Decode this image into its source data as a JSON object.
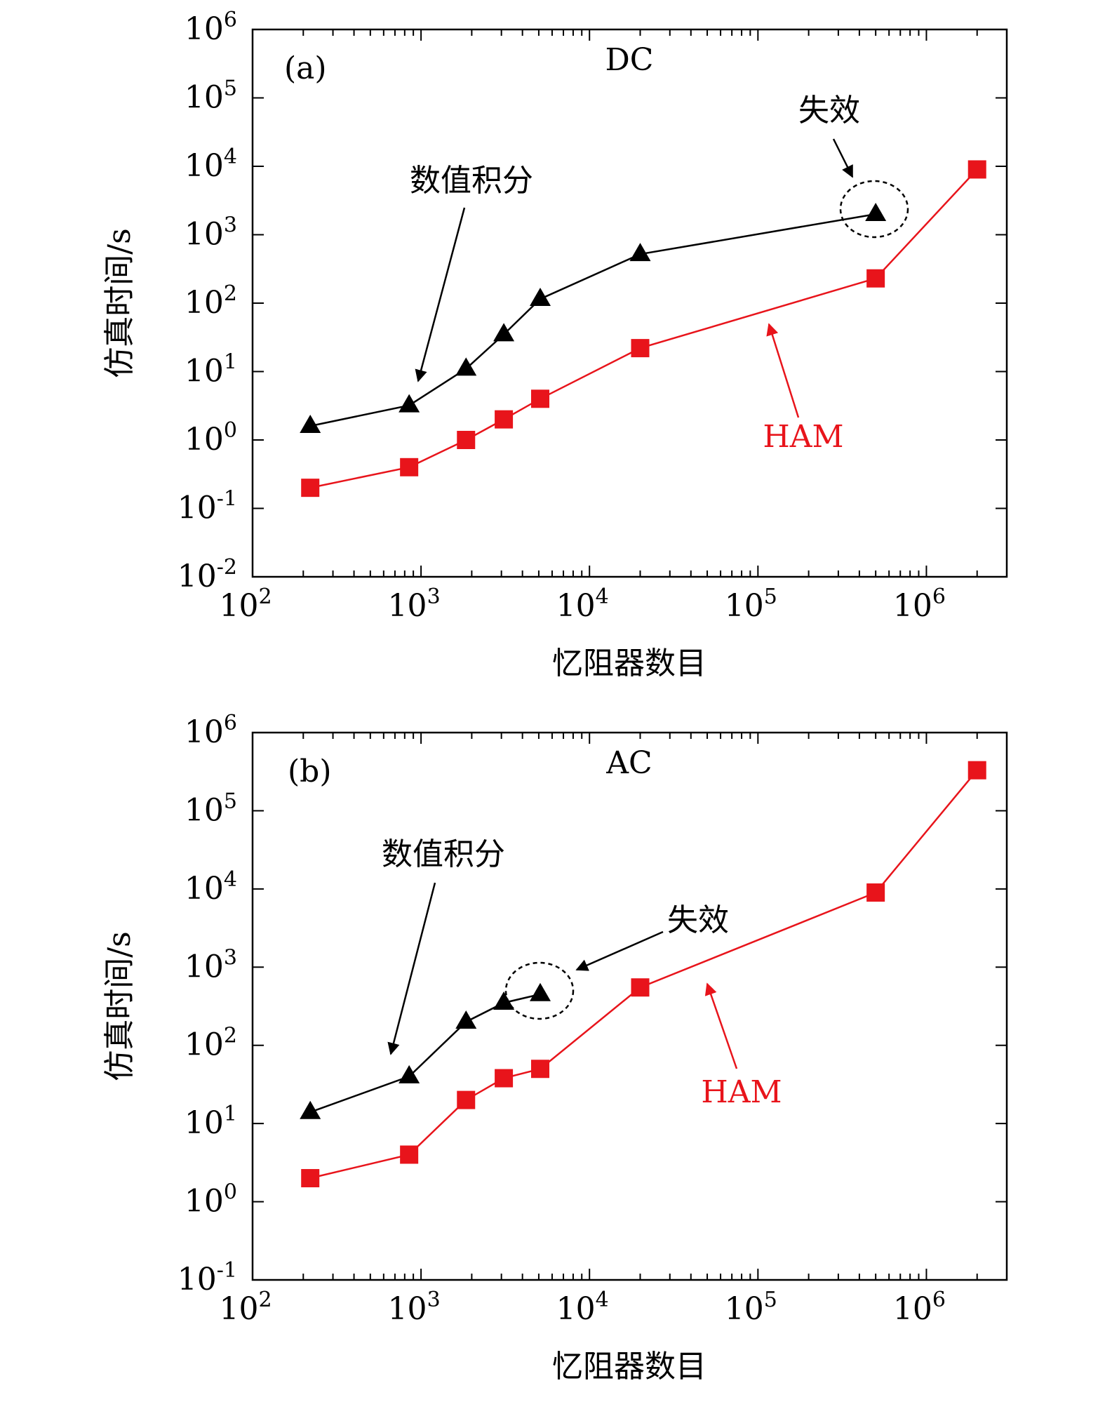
{
  "chart_data": [
    {
      "type": "line",
      "panel_label": "(a)",
      "title": "DC",
      "xlabel": "忆阻器数目",
      "ylabel": "仿真时间/s",
      "xscale": "log",
      "yscale": "log",
      "xlim": [
        100,
        3000000
      ],
      "ylim": [
        0.01,
        1000000
      ],
      "x_ticks": [
        "10^2",
        "10^3",
        "10^4",
        "10^5",
        "10^6"
      ],
      "y_ticks": [
        "10^-2",
        "10^-1",
        "10^0",
        "10^1",
        "10^2",
        "10^3",
        "10^4",
        "10^5",
        "10^6"
      ],
      "grid": false,
      "series": [
        {
          "name": "数值积分",
          "color": "#000000",
          "marker": "triangle",
          "x": [
            220,
            850,
            1850,
            3100,
            5100,
            20000,
            500000
          ],
          "y": [
            1.6,
            3.2,
            11,
            35,
            115,
            520,
            2000
          ]
        },
        {
          "name": "HAM",
          "color": "#e8141b",
          "marker": "square",
          "x": [
            220,
            850,
            1850,
            3100,
            5100,
            20000,
            500000,
            2000000
          ],
          "y": [
            0.2,
            0.4,
            1.0,
            2.0,
            4.0,
            22,
            230,
            9000
          ]
        }
      ],
      "annotations": [
        {
          "text": "数值积分",
          "color": "#000000"
        },
        {
          "text": "HAM",
          "color": "#e8141b"
        },
        {
          "text": "失效",
          "color": "#000000"
        }
      ]
    },
    {
      "type": "line",
      "panel_label": "(b)",
      "title": "AC",
      "xlabel": "忆阻器数目",
      "ylabel": "仿真时间/s",
      "xscale": "log",
      "yscale": "log",
      "xlim": [
        100,
        3000000
      ],
      "ylim": [
        0.1,
        1000000
      ],
      "x_ticks": [
        "10^2",
        "10^3",
        "10^4",
        "10^5",
        "10^6"
      ],
      "y_ticks": [
        "10^-1",
        "10^0",
        "10^1",
        "10^2",
        "10^3",
        "10^4",
        "10^5",
        "10^6"
      ],
      "grid": false,
      "series": [
        {
          "name": "数值积分",
          "color": "#000000",
          "marker": "triangle",
          "x": [
            220,
            850,
            1850,
            3100,
            5100
          ],
          "y": [
            14,
            40,
            200,
            350,
            450
          ]
        },
        {
          "name": "HAM",
          "color": "#e8141b",
          "marker": "square",
          "x": [
            220,
            850,
            1850,
            3100,
            5100,
            20000,
            500000,
            2000000
          ],
          "y": [
            2,
            4,
            20,
            38,
            50,
            550,
            9000,
            330000
          ]
        }
      ],
      "annotations": [
        {
          "text": "数值积分",
          "color": "#000000"
        },
        {
          "text": "HAM",
          "color": "#e8141b"
        },
        {
          "text": "失效",
          "color": "#000000"
        }
      ]
    }
  ]
}
